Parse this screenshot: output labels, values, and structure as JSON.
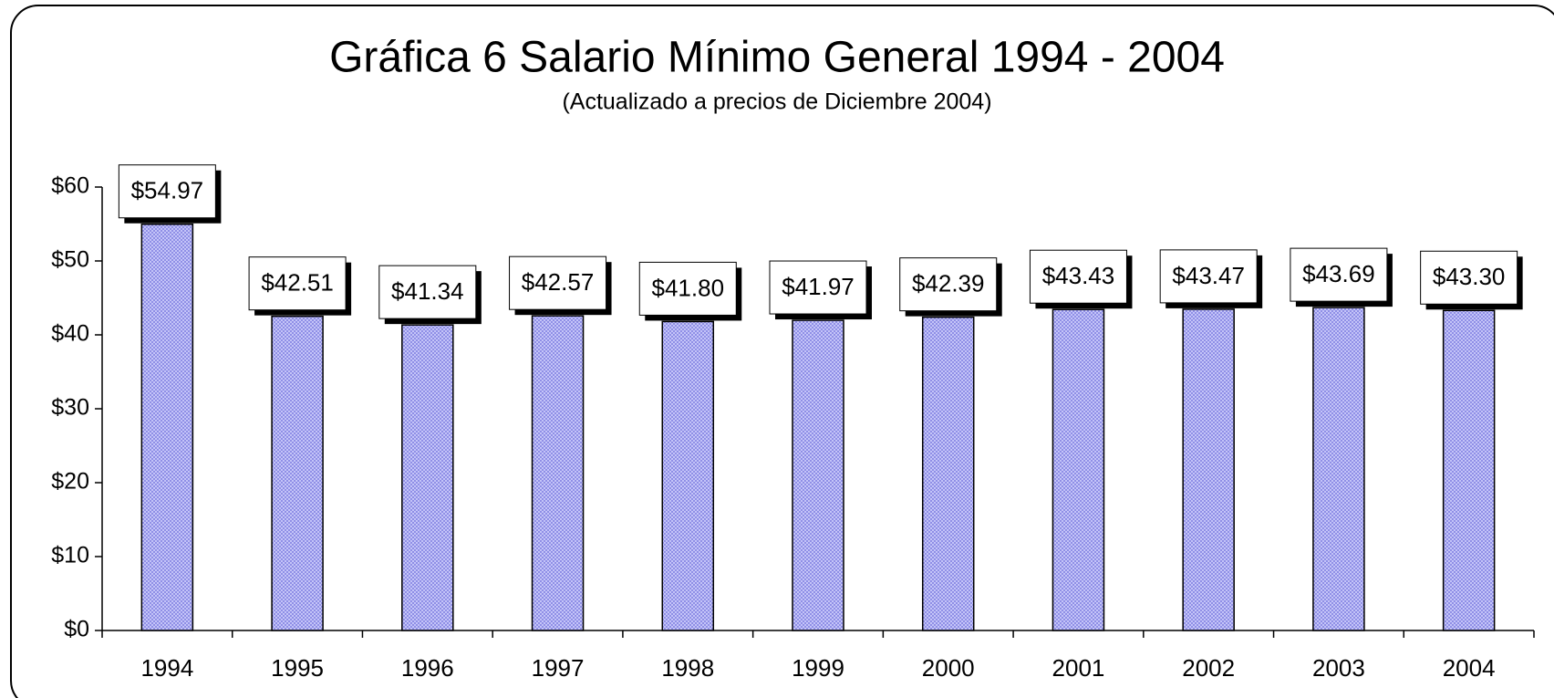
{
  "chart_data": {
    "type": "bar",
    "title": "Gráfica 6  Salario Mínimo General 1994 - 2004",
    "subtitle": "(Actualizado a precios de Diciembre 2004)",
    "categories": [
      "1994",
      "1995",
      "1996",
      "1997",
      "1998",
      "1999",
      "2000",
      "2001",
      "2002",
      "2003",
      "2004"
    ],
    "values": [
      54.97,
      42.51,
      41.34,
      42.57,
      41.8,
      41.97,
      42.39,
      43.43,
      43.47,
      43.69,
      43.3
    ],
    "value_labels": [
      "$54.97",
      "$42.51",
      "$41.34",
      "$42.57",
      "$41.80",
      "$41.97",
      "$42.39",
      "$43.43",
      "$43.47",
      "$43.69",
      "$43.30"
    ],
    "color": "#a8a8f0",
    "ylim": [
      0,
      60
    ],
    "yticks": [
      {
        "value": 0,
        "label": "$0"
      },
      {
        "value": 10,
        "label": "$10"
      },
      {
        "value": 20,
        "label": "$20"
      },
      {
        "value": 30,
        "label": "$30"
      },
      {
        "value": 40,
        "label": "$40"
      },
      {
        "value": 50,
        "label": "$50"
      },
      {
        "value": 60,
        "label": "$60"
      }
    ],
    "grid": false
  }
}
